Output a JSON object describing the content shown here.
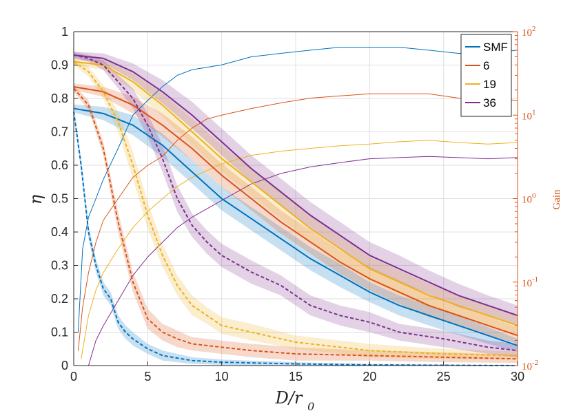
{
  "chart_data": {
    "type": "line",
    "title": "",
    "xlabel": "D/r_0",
    "ylabel": "η",
    "y2label": "Gain",
    "xlim": [
      0,
      30
    ],
    "ylim": [
      0,
      1
    ],
    "y2lim": [
      0.01,
      100
    ],
    "y2scale": "log",
    "grid": true,
    "legend_position": "top-right",
    "x_ticks": [
      0,
      5,
      10,
      15,
      20,
      25,
      30
    ],
    "x_tick_labels": [
      "0",
      "5",
      "10",
      "15",
      "20",
      "25",
      "30"
    ],
    "y_ticks": [
      0,
      0.1,
      0.2,
      0.3,
      0.4,
      0.5,
      0.6,
      0.7,
      0.8,
      0.9,
      1
    ],
    "y_tick_labels": [
      "0",
      "0.1",
      "0.2",
      "0.3",
      "0.4",
      "0.5",
      "0.6",
      "0.7",
      "0.8",
      "0.9",
      "1"
    ],
    "y2_ticks": [
      0.01,
      0.1,
      1,
      10,
      100
    ],
    "y2_tick_bases": [
      "10",
      "10",
      "10",
      "10",
      "10"
    ],
    "y2_tick_exponents": [
      "-2",
      "-1",
      "0",
      "1",
      "2"
    ],
    "legend": [
      "SMF",
      "6",
      "19",
      "36"
    ],
    "colors": {
      "SMF": "#0072bd",
      "6": "#d95319",
      "19": "#edb120",
      "36": "#7e2f8e",
      "axis": "#262626",
      "grid": "#dfdfdf",
      "right_axis": "#d95319"
    },
    "series": [
      {
        "name": "SMF",
        "color": "#0072bd",
        "solid": {
          "x": [
            0,
            2,
            4,
            6,
            8,
            10,
            12,
            14,
            16,
            18,
            20,
            22,
            24,
            26,
            28,
            30
          ],
          "y": [
            0.77,
            0.755,
            0.72,
            0.66,
            0.58,
            0.5,
            0.44,
            0.38,
            0.32,
            0.27,
            0.22,
            0.18,
            0.15,
            0.12,
            0.09,
            0.06
          ],
          "band": [
            0.012,
            0.02,
            0.03,
            0.035,
            0.035,
            0.035,
            0.035,
            0.035,
            0.035,
            0.035,
            0.03,
            0.03,
            0.03,
            0.028,
            0.025,
            0.02
          ]
        },
        "dashed": {
          "x": [
            0,
            0.5,
            1,
            1.5,
            2,
            2.5,
            3,
            3.5,
            4,
            5,
            6,
            8,
            10,
            15,
            20,
            25,
            30
          ],
          "y": [
            0.76,
            0.6,
            0.4,
            0.3,
            0.23,
            0.2,
            0.13,
            0.1,
            0.08,
            0.05,
            0.03,
            0.015,
            0.01,
            0.005,
            0.002,
            0.001,
            0.0
          ],
          "band": [
            0.01,
            0.02,
            0.02,
            0.02,
            0.02,
            0.02,
            0.02,
            0.02,
            0.02,
            0.015,
            0.015,
            0.01,
            0.008,
            0.005,
            0.003,
            0.002,
            0.001
          ]
        },
        "gain": {
          "x": [
            0.3,
            0.6,
            1,
            1.5,
            2,
            3,
            4,
            5,
            6,
            7,
            8,
            10,
            12,
            14,
            16,
            18,
            20,
            22,
            24,
            26,
            28,
            30
          ],
          "y": [
            0.025,
            0.25,
            0.6,
            1.0,
            1.7,
            4,
            10,
            15,
            22,
            30,
            35,
            40,
            50,
            55,
            60,
            65,
            65,
            65,
            60,
            55,
            55,
            60
          ]
        }
      },
      {
        "name": "6",
        "color": "#d95319",
        "solid": {
          "x": [
            0,
            2,
            4,
            6,
            8,
            10,
            12,
            14,
            16,
            18,
            20,
            22,
            24,
            26,
            28,
            30
          ],
          "y": [
            0.835,
            0.82,
            0.78,
            0.72,
            0.65,
            0.57,
            0.5,
            0.43,
            0.37,
            0.31,
            0.26,
            0.22,
            0.18,
            0.15,
            0.12,
            0.09
          ],
          "band": [
            0.01,
            0.015,
            0.025,
            0.035,
            0.035,
            0.035,
            0.035,
            0.035,
            0.035,
            0.035,
            0.035,
            0.035,
            0.035,
            0.03,
            0.028,
            0.025
          ]
        },
        "dashed": {
          "x": [
            0,
            1,
            2,
            3,
            4,
            5,
            6,
            7,
            8,
            10,
            12,
            15,
            20,
            25,
            30
          ],
          "y": [
            0.83,
            0.78,
            0.65,
            0.43,
            0.25,
            0.14,
            0.1,
            0.08,
            0.065,
            0.055,
            0.045,
            0.035,
            0.03,
            0.025,
            0.02
          ],
          "band": [
            0.01,
            0.015,
            0.02,
            0.03,
            0.03,
            0.03,
            0.025,
            0.025,
            0.02,
            0.02,
            0.02,
            0.02,
            0.015,
            0.015,
            0.012
          ]
        },
        "gain": {
          "x": [
            0.3,
            0.6,
            1,
            1.5,
            2,
            3,
            4,
            5,
            6,
            7,
            8,
            9,
            10,
            12,
            14,
            16,
            18,
            20,
            22,
            24,
            26,
            28,
            30
          ],
          "y": [
            0.015,
            0.05,
            0.13,
            0.3,
            0.55,
            1.0,
            1.8,
            2.5,
            3.2,
            5,
            7,
            9,
            10,
            12,
            14,
            16,
            17,
            18,
            18,
            18,
            16,
            16,
            15
          ]
        }
      },
      {
        "name": "19",
        "color": "#edb120",
        "solid": {
          "x": [
            0,
            2,
            4,
            6,
            8,
            10,
            12,
            14,
            16,
            18,
            20,
            22,
            24,
            26,
            28,
            30
          ],
          "y": [
            0.91,
            0.9,
            0.85,
            0.78,
            0.7,
            0.62,
            0.55,
            0.48,
            0.41,
            0.35,
            0.29,
            0.25,
            0.21,
            0.18,
            0.15,
            0.12
          ],
          "band": [
            0.01,
            0.015,
            0.025,
            0.035,
            0.04,
            0.04,
            0.04,
            0.04,
            0.04,
            0.04,
            0.035,
            0.035,
            0.035,
            0.03,
            0.03,
            0.03
          ]
        },
        "dashed": {
          "x": [
            0,
            1,
            2,
            3,
            4,
            5,
            6,
            7,
            8,
            9,
            10,
            12,
            15,
            20,
            25,
            30
          ],
          "y": [
            0.91,
            0.88,
            0.82,
            0.73,
            0.6,
            0.45,
            0.33,
            0.24,
            0.18,
            0.15,
            0.12,
            0.1,
            0.07,
            0.045,
            0.035,
            0.03
          ],
          "band": [
            0.01,
            0.015,
            0.02,
            0.03,
            0.04,
            0.04,
            0.035,
            0.03,
            0.03,
            0.025,
            0.025,
            0.025,
            0.02,
            0.02,
            0.015,
            0.012
          ]
        },
        "gain": {
          "x": [
            0.5,
            1,
            1.5,
            2,
            3,
            4,
            5,
            6,
            7,
            8,
            10,
            12,
            14,
            16,
            18,
            20,
            22,
            24,
            26,
            28,
            30
          ],
          "y": [
            0.012,
            0.04,
            0.08,
            0.13,
            0.25,
            0.45,
            0.7,
            1.0,
            1.4,
            1.8,
            2.6,
            3.3,
            3.7,
            4.0,
            4.3,
            4.5,
            4.8,
            5.0,
            4.7,
            4.5,
            4.7
          ]
        }
      },
      {
        "name": "36",
        "color": "#7e2f8e",
        "solid": {
          "x": [
            0,
            2,
            4,
            6,
            8,
            10,
            12,
            14,
            16,
            18,
            20,
            22,
            24,
            26,
            28,
            30
          ],
          "y": [
            0.93,
            0.92,
            0.88,
            0.82,
            0.75,
            0.67,
            0.59,
            0.52,
            0.45,
            0.39,
            0.33,
            0.29,
            0.25,
            0.21,
            0.18,
            0.15
          ],
          "band": [
            0.01,
            0.015,
            0.025,
            0.035,
            0.04,
            0.04,
            0.04,
            0.04,
            0.04,
            0.04,
            0.04,
            0.04,
            0.035,
            0.035,
            0.03,
            0.03
          ]
        },
        "dashed": {
          "x": [
            0,
            1,
            2,
            3,
            4,
            5,
            6,
            7,
            8,
            9,
            10,
            12,
            14,
            16,
            18,
            20,
            22,
            25,
            28,
            30
          ],
          "y": [
            0.93,
            0.92,
            0.9,
            0.85,
            0.8,
            0.72,
            0.62,
            0.5,
            0.42,
            0.37,
            0.33,
            0.28,
            0.24,
            0.18,
            0.15,
            0.13,
            0.1,
            0.08,
            0.055,
            0.045
          ],
          "band": [
            0.01,
            0.01,
            0.015,
            0.02,
            0.03,
            0.035,
            0.04,
            0.04,
            0.035,
            0.035,
            0.035,
            0.035,
            0.03,
            0.03,
            0.03,
            0.03,
            0.025,
            0.025,
            0.02,
            0.02
          ]
        },
        "gain": {
          "x": [
            1,
            1.5,
            2,
            3,
            4,
            5,
            6,
            7,
            8,
            10,
            12,
            14,
            16,
            18,
            20,
            22,
            24,
            26,
            28,
            30
          ],
          "y": [
            0.01,
            0.02,
            0.03,
            0.06,
            0.12,
            0.2,
            0.3,
            0.45,
            0.6,
            0.95,
            1.5,
            2.0,
            2.4,
            2.7,
            3.0,
            3.1,
            3.2,
            3.1,
            3.0,
            3.1
          ]
        }
      }
    ]
  }
}
